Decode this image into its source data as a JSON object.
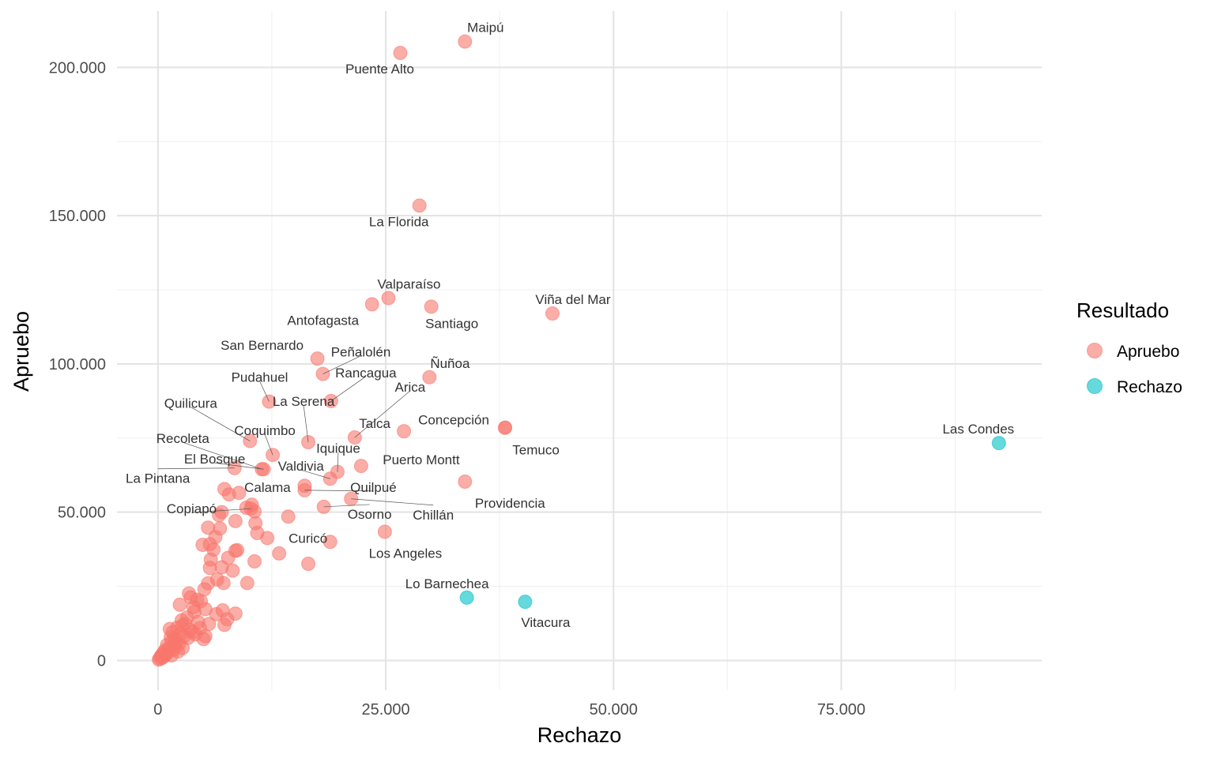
{
  "chart_data": {
    "type": "scatter",
    "xlabel": "Rechazo",
    "ylabel": "Apruebo",
    "xlim": [
      -4500,
      97000
    ],
    "ylim": [
      -10000,
      219000
    ],
    "x_ticks": [
      0,
      25000,
      50000,
      75000
    ],
    "x_tick_labels": [
      "0",
      "25.000",
      "50.000",
      "75.000"
    ],
    "y_ticks": [
      0,
      50000,
      100000,
      150000,
      200000
    ],
    "y_tick_labels": [
      "0",
      "50.000",
      "100.000",
      "150.000",
      "200.000"
    ],
    "grid": true,
    "legend": {
      "title": "Resultado",
      "position": "right",
      "entries": [
        {
          "label": "Apruebo",
          "color": "#F8766D"
        },
        {
          "label": "Rechazo",
          "color": "#00BFC4"
        }
      ]
    },
    "series": [
      {
        "name": "Apruebo",
        "color": "#F8766D",
        "labeled_points": [
          {
            "label": "Maipú",
            "x": 33700,
            "y": 208700
          },
          {
            "label": "Puente Alto",
            "x": 26600,
            "y": 204900
          },
          {
            "label": "La Florida",
            "x": 28700,
            "y": 153400
          },
          {
            "label": "Valparaíso",
            "x": 25300,
            "y": 122200
          },
          {
            "label": "Antofagasta",
            "x": 23500,
            "y": 120100
          },
          {
            "label": "Santiago",
            "x": 30000,
            "y": 119300
          },
          {
            "label": "Viña del Mar",
            "x": 43300,
            "y": 117000
          },
          {
            "label": "San Bernardo",
            "x": 17500,
            "y": 101800
          },
          {
            "label": "Peñalolén",
            "x": 18100,
            "y": 96600
          },
          {
            "label": "Ñuñoa",
            "x": 29800,
            "y": 95500
          },
          {
            "label": "Rancagua",
            "x": 19000,
            "y": 87500
          },
          {
            "label": "Pudahuel",
            "x": 12200,
            "y": 87300
          },
          {
            "label": "La Serena",
            "x": 16500,
            "y": 73600
          },
          {
            "label": "Arica",
            "x": 21600,
            "y": 75200
          },
          {
            "label": "Talca",
            "x": 27000,
            "y": 77300
          },
          {
            "label": "Concepción",
            "x": 38100,
            "y": 78500
          },
          {
            "label": "Temuco",
            "x": 38100,
            "y": 78500
          },
          {
            "label": "Quilicura",
            "x": 10100,
            "y": 74000
          },
          {
            "label": "Coquimbo",
            "x": 12600,
            "y": 69300
          },
          {
            "label": "Recoleta",
            "x": 11400,
            "y": 64500
          },
          {
            "label": "El Bosque",
            "x": 11600,
            "y": 64500
          },
          {
            "label": "Valdivia",
            "x": 18900,
            "y": 61300
          },
          {
            "label": "Iquique",
            "x": 19700,
            "y": 63600
          },
          {
            "label": "Puerto Montt",
            "x": 22300,
            "y": 65600
          },
          {
            "label": "La Pintana",
            "x": 8400,
            "y": 64900
          },
          {
            "label": "Providencia",
            "x": 33700,
            "y": 60300
          },
          {
            "label": "Quilpué",
            "x": 16100,
            "y": 57400
          },
          {
            "label": "Calama",
            "x": 16100,
            "y": 58900
          },
          {
            "label": "Chillán",
            "x": 21200,
            "y": 54500
          },
          {
            "label": "Copiapó",
            "x": 10200,
            "y": 51200
          },
          {
            "label": "Osorno",
            "x": 18200,
            "y": 51800
          },
          {
            "label": "Curicó",
            "x": 14300,
            "y": 48500
          },
          {
            "label": "Los Angeles",
            "x": 24900,
            "y": 43400
          }
        ],
        "points": [
          {
            "x": 7300,
            "y": 57800
          },
          {
            "x": 7800,
            "y": 56000
          },
          {
            "x": 8900,
            "y": 56500
          },
          {
            "x": 10300,
            "y": 52500
          },
          {
            "x": 9700,
            "y": 51500
          },
          {
            "x": 10600,
            "y": 50200
          },
          {
            "x": 7000,
            "y": 50000
          },
          {
            "x": 6700,
            "y": 49000
          },
          {
            "x": 8500,
            "y": 47000
          },
          {
            "x": 10700,
            "y": 46300
          },
          {
            "x": 5500,
            "y": 44800
          },
          {
            "x": 6800,
            "y": 44500
          },
          {
            "x": 10900,
            "y": 43000
          },
          {
            "x": 12000,
            "y": 41300
          },
          {
            "x": 6300,
            "y": 41600
          },
          {
            "x": 5700,
            "y": 39200
          },
          {
            "x": 4900,
            "y": 39000
          },
          {
            "x": 18900,
            "y": 40000
          },
          {
            "x": 6100,
            "y": 37400
          },
          {
            "x": 8500,
            "y": 37000
          },
          {
            "x": 8700,
            "y": 37200
          },
          {
            "x": 13300,
            "y": 36100
          },
          {
            "x": 7700,
            "y": 34600
          },
          {
            "x": 5800,
            "y": 34000
          },
          {
            "x": 10600,
            "y": 33400
          },
          {
            "x": 16500,
            "y": 32600
          },
          {
            "x": 7000,
            "y": 31400
          },
          {
            "x": 5700,
            "y": 31200
          },
          {
            "x": 8200,
            "y": 30300
          },
          {
            "x": 6500,
            "y": 27300
          },
          {
            "x": 5500,
            "y": 26000
          },
          {
            "x": 7200,
            "y": 26100
          },
          {
            "x": 9800,
            "y": 26100
          },
          {
            "x": 5100,
            "y": 24000
          },
          {
            "x": 3400,
            "y": 22600
          },
          {
            "x": 4300,
            "y": 20500
          },
          {
            "x": 3600,
            "y": 21300
          },
          {
            "x": 2400,
            "y": 18800
          },
          {
            "x": 5200,
            "y": 17300
          },
          {
            "x": 4000,
            "y": 16400
          },
          {
            "x": 7100,
            "y": 16900
          },
          {
            "x": 8500,
            "y": 15800
          },
          {
            "x": 6400,
            "y": 15600
          },
          {
            "x": 3200,
            "y": 14500
          },
          {
            "x": 7600,
            "y": 13900
          },
          {
            "x": 7300,
            "y": 12000
          },
          {
            "x": 5600,
            "y": 12300
          },
          {
            "x": 2700,
            "y": 11800
          },
          {
            "x": 4600,
            "y": 10900
          },
          {
            "x": 5200,
            "y": 8200
          },
          {
            "x": 5000,
            "y": 7200
          },
          {
            "x": 4100,
            "y": 8800
          },
          {
            "x": 3500,
            "y": 10300
          },
          {
            "x": 3000,
            "y": 12300
          },
          {
            "x": 2600,
            "y": 13500
          },
          {
            "x": 2100,
            "y": 11000
          },
          {
            "x": 1600,
            "y": 9500
          },
          {
            "x": 1300,
            "y": 10600
          },
          {
            "x": 2800,
            "y": 8000
          },
          {
            "x": 1900,
            "y": 7300
          },
          {
            "x": 1500,
            "y": 6400
          },
          {
            "x": 2300,
            "y": 5400
          },
          {
            "x": 1000,
            "y": 5200
          },
          {
            "x": 1200,
            "y": 4000
          },
          {
            "x": 800,
            "y": 3500
          },
          {
            "x": 1700,
            "y": 3600
          },
          {
            "x": 600,
            "y": 2600
          },
          {
            "x": 400,
            "y": 1800
          },
          {
            "x": 900,
            "y": 2100
          },
          {
            "x": 300,
            "y": 1200
          },
          {
            "x": 200,
            "y": 600
          },
          {
            "x": 100,
            "y": 300
          },
          {
            "x": 500,
            "y": 900
          },
          {
            "x": 700,
            "y": 1500
          },
          {
            "x": 1100,
            "y": 2800
          },
          {
            "x": 1400,
            "y": 7800
          },
          {
            "x": 1800,
            "y": 4700
          },
          {
            "x": 2000,
            "y": 6000
          },
          {
            "x": 2500,
            "y": 9000
          },
          {
            "x": 3300,
            "y": 7600
          },
          {
            "x": 2200,
            "y": 3000
          },
          {
            "x": 3800,
            "y": 9600
          },
          {
            "x": 4400,
            "y": 13000
          },
          {
            "x": 3900,
            "y": 18000
          },
          {
            "x": 4700,
            "y": 20000
          },
          {
            "x": 1500,
            "y": 1700
          },
          {
            "x": 2700,
            "y": 4200
          }
        ]
      },
      {
        "name": "Rechazo",
        "color": "#00BFC4",
        "labeled_points": [
          {
            "label": "Las Condes",
            "x": 92300,
            "y": 73300
          },
          {
            "label": "Lo Barnechea",
            "x": 33900,
            "y": 21200
          },
          {
            "label": "Vitacura",
            "x": 40300,
            "y": 19800
          }
        ],
        "points": []
      }
    ]
  }
}
